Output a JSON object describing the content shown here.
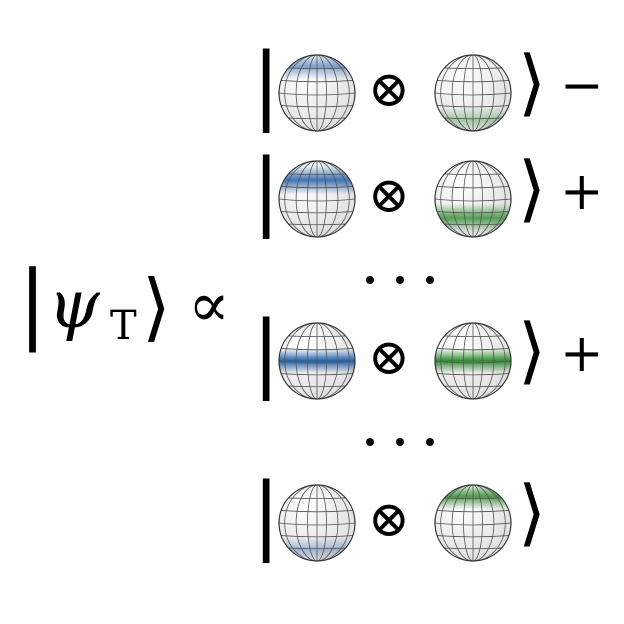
{
  "lhs": {
    "ket_open": "|",
    "psi": "ψ",
    "subscript": "T",
    "ket_close": "⟩",
    "relation": "∝"
  },
  "tensor_symbol": "⊗",
  "ket_open": "|",
  "ket_close": "⟩",
  "ellipsis": "· · ·",
  "colors": {
    "left_sphere": "#1f5fa8",
    "right_sphere": "#2e8b2e",
    "grid": "#555555"
  },
  "rows": [
    {
      "left_band": "north-cap",
      "left_intensity": 0.55,
      "right_band": "south-cap",
      "right_intensity": 0.35,
      "sign": "−"
    },
    {
      "left_band": "north-upper",
      "left_intensity": 0.85,
      "right_band": "south-lower",
      "right_intensity": 0.8,
      "sign": "+"
    },
    {
      "left_band": "equator",
      "left_intensity": 1.0,
      "right_band": "equator",
      "right_intensity": 1.0,
      "sign": "+"
    },
    {
      "left_band": "south-cap",
      "left_intensity": 0.35,
      "right_band": "north-cap",
      "right_intensity": 0.85,
      "sign": ""
    }
  ]
}
